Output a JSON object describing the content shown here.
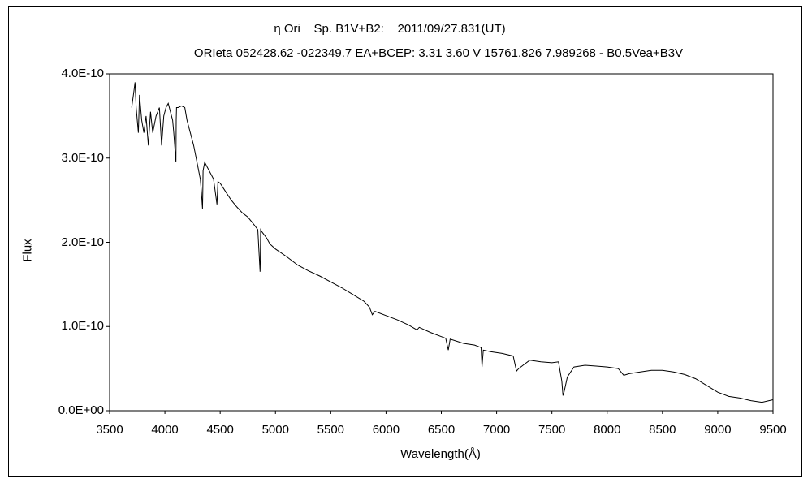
{
  "chart_data": {
    "type": "line",
    "title": "η Ori    Sp. B1V+B2:    2011/09/27.831(UT)",
    "subtitle": "ORIeta 052428.62 -022349.7 EA+BCEP: 3.31 3.60 V 15761.826 7.989268 - B0.5Vea+B3V",
    "xlabel": "Wavelength(Å)",
    "ylabel": "Flux",
    "xlim": [
      3500,
      9500
    ],
    "ylim": [
      0,
      4e-10
    ],
    "xticks": [
      "3500",
      "4000",
      "4500",
      "5000",
      "5500",
      "6000",
      "6500",
      "7000",
      "7500",
      "8000",
      "8500",
      "9000",
      "9500"
    ],
    "yticks": [
      "0.0E+00",
      "1.0E-10",
      "2.0E-10",
      "3.0E-10",
      "4.0E-10"
    ],
    "grid": false,
    "legend": "none",
    "series": [
      {
        "name": "",
        "x": [
          3700,
          3720,
          3730,
          3740,
          3760,
          3770,
          3790,
          3810,
          3830,
          3850,
          3870,
          3890,
          3920,
          3950,
          3970,
          3990,
          4010,
          4030,
          4050,
          4070,
          4080,
          4100,
          4102,
          4105,
          4120,
          4150,
          4180,
          4200,
          4230,
          4260,
          4290,
          4320,
          4330,
          4340,
          4342,
          4345,
          4360,
          4380,
          4400,
          4420,
          4440,
          4471,
          4480,
          4500,
          4550,
          4600,
          4650,
          4700,
          4750,
          4800,
          4840,
          4861,
          4863,
          4866,
          4880,
          4920,
          4950,
          5000,
          5100,
          5200,
          5300,
          5400,
          5500,
          5600,
          5700,
          5800,
          5850,
          5876,
          5900,
          6000,
          6100,
          6200,
          6280,
          6300,
          6400,
          6500,
          6540,
          6563,
          6580,
          6700,
          6800,
          6860,
          6868,
          6880,
          6950,
          7050,
          7150,
          7180,
          7200,
          7250,
          7300,
          7400,
          7500,
          7560,
          7590,
          7600,
          7610,
          7640,
          7700,
          7800,
          7900,
          8000,
          8100,
          8150,
          8200,
          8300,
          8400,
          8500,
          8600,
          8700,
          8800,
          8900,
          9000,
          9100,
          9200,
          9300,
          9400,
          9500
        ],
        "y": [
          3.6e-10,
          3.8e-10,
          3.9e-10,
          3.6e-10,
          3.3e-10,
          3.75e-10,
          3.45e-10,
          3.3e-10,
          3.5e-10,
          3.15e-10,
          3.55e-10,
          3.3e-10,
          3.5e-10,
          3.6e-10,
          3.15e-10,
          3.5e-10,
          3.6e-10,
          3.65e-10,
          3.55e-10,
          3.45e-10,
          3.3e-10,
          2.95e-10,
          3.45e-10,
          3.6e-10,
          3.6e-10,
          3.62e-10,
          3.6e-10,
          3.45e-10,
          3.3e-10,
          3.15e-10,
          2.95e-10,
          2.75e-10,
          2.6e-10,
          2.4e-10,
          2.55e-10,
          2.85e-10,
          2.95e-10,
          2.9e-10,
          2.85e-10,
          2.8e-10,
          2.75e-10,
          2.45e-10,
          2.72e-10,
          2.7e-10,
          2.6e-10,
          2.5e-10,
          2.42e-10,
          2.35e-10,
          2.3e-10,
          2.22e-10,
          2.15e-10,
          1.65e-10,
          1.8e-10,
          2.15e-10,
          2.12e-10,
          2.05e-10,
          1.98e-10,
          1.92e-10,
          1.83e-10,
          1.73e-10,
          1.66e-10,
          1.6e-10,
          1.53e-10,
          1.46e-10,
          1.38e-10,
          1.3e-10,
          1.23e-10,
          1.14e-10,
          1.18e-10,
          1.13e-10,
          1.08e-10,
          1.02e-10,
          9.6e-11,
          9.9e-11,
          9.3e-11,
          8.8e-11,
          8.6e-11,
          7.2e-11,
          8.5e-11,
          8e-11,
          7.8e-11,
          7.5e-11,
          5.2e-11,
          7.2e-11,
          7e-11,
          6.8e-11,
          6.5e-11,
          4.7e-11,
          5e-11,
          5.5e-11,
          6e-11,
          5.8e-11,
          5.7e-11,
          5.8e-11,
          3.5e-11,
          1.8e-11,
          2.2e-11,
          4e-11,
          5.2e-11,
          5.4e-11,
          5.3e-11,
          5.2e-11,
          5e-11,
          4.2e-11,
          4.4e-11,
          4.6e-11,
          4.8e-11,
          4.8e-11,
          4.6e-11,
          4.3e-11,
          3.8e-11,
          3e-11,
          2.2e-11,
          1.7e-11,
          1.5e-11,
          1.2e-11,
          1e-11,
          1.3e-11
        ]
      }
    ]
  }
}
